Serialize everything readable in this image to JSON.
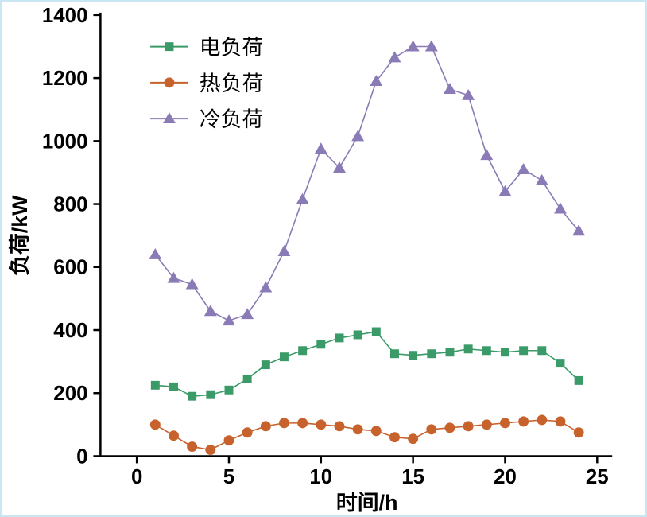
{
  "figure": {
    "background": "#ffffff",
    "border_color": "#c9e6f2",
    "axis_color": "#000000"
  },
  "chart_data": {
    "type": "line",
    "title": "",
    "xlabel": "时间/h",
    "ylabel": "负荷/kW",
    "xlim": [
      0,
      25
    ],
    "ylim": [
      0,
      1400
    ],
    "x_ticks": [
      0,
      5,
      10,
      15,
      20,
      25
    ],
    "y_ticks": [
      0,
      200,
      400,
      600,
      800,
      1000,
      1200,
      1400
    ],
    "grid": false,
    "legend_position": "top-left-inside",
    "x": [
      1,
      2,
      3,
      4,
      5,
      6,
      7,
      8,
      9,
      10,
      11,
      12,
      13,
      14,
      15,
      16,
      17,
      18,
      19,
      20,
      21,
      22,
      23,
      24
    ],
    "series": [
      {
        "name": "电负荷",
        "color": "#3a9a68",
        "marker": "square",
        "values": [
          225,
          220,
          190,
          195,
          210,
          245,
          290,
          315,
          335,
          355,
          375,
          385,
          395,
          325,
          320,
          325,
          330,
          340,
          335,
          330,
          335,
          335,
          295,
          240
        ]
      },
      {
        "name": "热负荷",
        "color": "#c8622d",
        "marker": "circle",
        "values": [
          100,
          65,
          30,
          20,
          50,
          75,
          95,
          105,
          105,
          100,
          95,
          85,
          80,
          60,
          55,
          85,
          90,
          95,
          100,
          105,
          110,
          115,
          110,
          75
        ]
      },
      {
        "name": "冷负荷",
        "color": "#8a7ab5",
        "marker": "triangle",
        "values": [
          640,
          565,
          545,
          460,
          430,
          450,
          535,
          650,
          815,
          975,
          915,
          1015,
          1190,
          1265,
          1300,
          1300,
          1165,
          1145,
          955,
          840,
          910,
          875,
          785,
          715
        ]
      }
    ]
  }
}
